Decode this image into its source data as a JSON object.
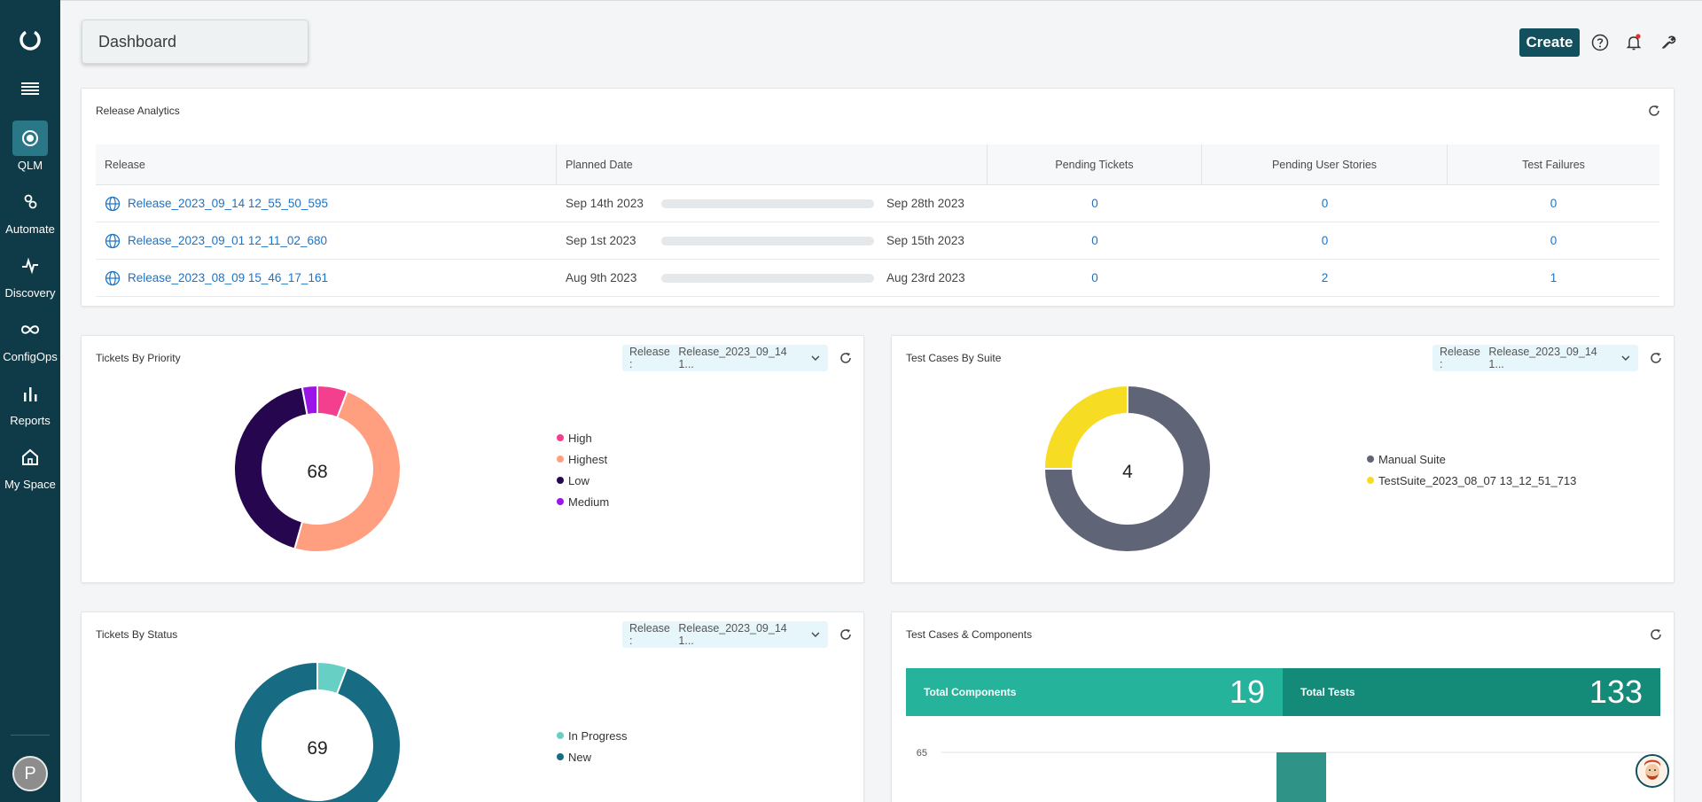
{
  "sidebar": {
    "items": [
      {
        "label": "QLM",
        "icon": "qlm-icon"
      },
      {
        "label": "Automate",
        "icon": "gears-icon"
      },
      {
        "label": "Discovery",
        "icon": "pulse-icon"
      },
      {
        "label": "ConfigOps",
        "icon": "infinity-icon"
      },
      {
        "label": "Reports",
        "icon": "bar-chart-icon"
      },
      {
        "label": "My Space",
        "icon": "home-icon"
      }
    ],
    "user_initial": "P"
  },
  "header": {
    "title": "Dashboard",
    "create_label": "Create"
  },
  "release_analytics": {
    "title": "Release Analytics",
    "columns": [
      "Release",
      "Planned Date",
      "Pending Tickets",
      "Pending User Stories",
      "Test Failures"
    ],
    "rows": [
      {
        "release": "Release_2023_09_14 12_55_50_595",
        "start": "Sep 14th 2023",
        "end": "Sep 28th 2023",
        "pending_tickets": "0",
        "pending_stories": "0",
        "test_failures": "0"
      },
      {
        "release": "Release_2023_09_01 12_11_02_680",
        "start": "Sep 1st 2023",
        "end": "Sep 15th 2023",
        "pending_tickets": "0",
        "pending_stories": "0",
        "test_failures": "0"
      },
      {
        "release": "Release_2023_08_09 15_46_17_161",
        "start": "Aug 9th 2023",
        "end": "Aug 23rd 2023",
        "pending_tickets": "0",
        "pending_stories": "2",
        "test_failures": "1"
      }
    ]
  },
  "tickets_by_priority": {
    "title": "Tickets By Priority",
    "select_label": "Release :",
    "select_value": "Release_2023_09_14 1...",
    "total": "68",
    "legend": [
      {
        "name": "High",
        "color": "#f43f8e"
      },
      {
        "name": "Highest",
        "color": "#ff9f80"
      },
      {
        "name": "Low",
        "color": "#26064f"
      },
      {
        "name": "Medium",
        "color": "#9b14e8"
      }
    ]
  },
  "test_cases_by_suite": {
    "title": "Test Cases By Suite",
    "select_label": "Release :",
    "select_value": "Release_2023_09_14 1...",
    "total": "4",
    "legend": [
      {
        "name": "Manual Suite",
        "color": "#5f6577"
      },
      {
        "name": "TestSuite_2023_08_07 13_12_51_713",
        "color": "#f7dc24"
      }
    ]
  },
  "tickets_by_status": {
    "title": "Tickets By Status",
    "select_label": "Release :",
    "select_value": "Release_2023_09_14 1...",
    "total": "69",
    "legend": [
      {
        "name": "In Progress",
        "color": "#67cfc4"
      },
      {
        "name": "New",
        "color": "#176c84"
      }
    ]
  },
  "test_cases_components": {
    "title": "Test Cases & Components",
    "total_components_label": "Total Components",
    "total_components_value": "19",
    "total_tests_label": "Total Tests",
    "total_tests_value": "133",
    "chart_tick": "65"
  },
  "chart_data": [
    {
      "type": "pie",
      "title": "Tickets By Priority",
      "categories": [
        "High",
        "Highest",
        "Low",
        "Medium"
      ],
      "values": [
        4,
        33,
        29,
        2
      ],
      "colors": [
        "#f43f8e",
        "#ff9f80",
        "#26064f",
        "#9b14e8"
      ],
      "center_label": "68"
    },
    {
      "type": "pie",
      "title": "Test Cases By Suite",
      "categories": [
        "Manual Suite",
        "TestSuite_2023_08_07 13_12_51_713"
      ],
      "values": [
        3,
        1
      ],
      "colors": [
        "#5f6577",
        "#f7dc24"
      ],
      "center_label": "4"
    },
    {
      "type": "pie",
      "title": "Tickets By Status",
      "categories": [
        "In Progress",
        "New"
      ],
      "values": [
        4,
        65
      ],
      "colors": [
        "#67cfc4",
        "#176c84"
      ],
      "center_label": "69"
    },
    {
      "type": "bar",
      "title": "Test Cases & Components",
      "categories": [
        ""
      ],
      "values": [
        65
      ],
      "ytick": "65",
      "colors": [
        "#2f9487"
      ]
    }
  ]
}
